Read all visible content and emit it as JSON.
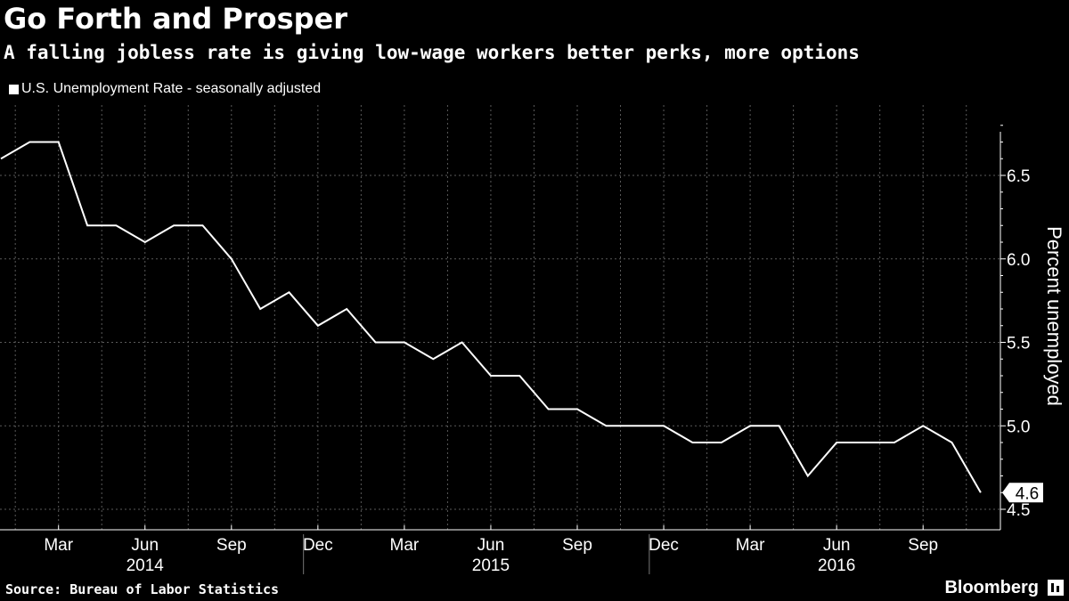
{
  "header": {
    "title": "Go Forth and Prosper",
    "subtitle": "A falling jobless rate is giving low-wage workers better perks, more options"
  },
  "footer": {
    "source": "Source: Bureau of Labor Statistics",
    "brand": "Bloomberg"
  },
  "colors": {
    "background": "#000000",
    "line": "#ffffff",
    "grid": "#5a5a5a"
  },
  "chart_data": {
    "type": "line",
    "legend_position": "top-left",
    "grid": true,
    "ylabel": "Percent unemployed",
    "ylim": [
      4.45,
      6.9
    ],
    "y_ticks": [
      4.5,
      5.0,
      5.5,
      6.0,
      6.5
    ],
    "y_tick_labels": [
      "4.5",
      "5.0",
      "5.5",
      "6.0",
      "6.5"
    ],
    "x_ticks": [
      "2014-03",
      "2014-06",
      "2014-09",
      "2014-12",
      "2015-03",
      "2015-06",
      "2015-09",
      "2015-12",
      "2016-03",
      "2016-06",
      "2016-09"
    ],
    "x_tick_labels": [
      "Mar",
      "Jun",
      "Sep",
      "Dec",
      "Mar",
      "Jun",
      "Sep",
      "Dec",
      "Mar",
      "Jun",
      "Sep"
    ],
    "year_labels": [
      {
        "label": "2014",
        "x": "2014-06"
      },
      {
        "label": "2015",
        "x": "2015-06"
      },
      {
        "label": "2016",
        "x": "2016-06"
      }
    ],
    "last_value_label": "4.6",
    "series": [
      {
        "name": "U.S. Unemployment Rate - seasonally adjusted",
        "x": [
          "2014-01",
          "2014-02",
          "2014-03",
          "2014-04",
          "2014-05",
          "2014-06",
          "2014-07",
          "2014-08",
          "2014-09",
          "2014-10",
          "2014-11",
          "2014-12",
          "2015-01",
          "2015-02",
          "2015-03",
          "2015-04",
          "2015-05",
          "2015-06",
          "2015-07",
          "2015-08",
          "2015-09",
          "2015-10",
          "2015-11",
          "2015-12",
          "2016-01",
          "2016-02",
          "2016-03",
          "2016-04",
          "2016-05",
          "2016-06",
          "2016-07",
          "2016-08",
          "2016-09",
          "2016-10",
          "2016-11"
        ],
        "values": [
          6.6,
          6.7,
          6.7,
          6.2,
          6.2,
          6.1,
          6.2,
          6.2,
          6.0,
          5.7,
          5.8,
          5.6,
          5.7,
          5.5,
          5.5,
          5.4,
          5.5,
          5.3,
          5.3,
          5.1,
          5.1,
          5.0,
          5.0,
          5.0,
          4.9,
          4.9,
          5.0,
          5.0,
          4.7,
          4.9,
          4.9,
          4.9,
          5.0,
          4.9,
          4.6
        ]
      }
    ]
  }
}
